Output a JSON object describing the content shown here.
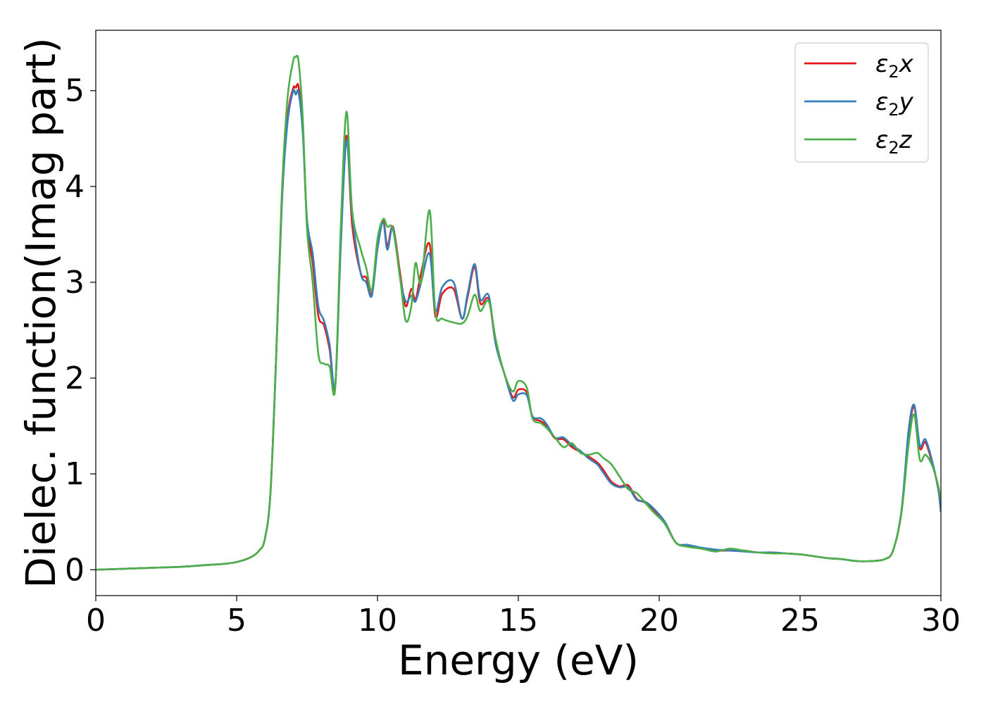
{
  "chart_data": {
    "type": "line",
    "title": "",
    "xlabel": "Energy (eV)",
    "ylabel": "Dielec. function(Imag part)",
    "xlim": [
      0,
      30
    ],
    "ylim": [
      -0.27,
      5.63
    ],
    "xticks": [
      0,
      5,
      10,
      15,
      20,
      25,
      30
    ],
    "yticks": [
      0,
      1,
      2,
      3,
      4,
      5
    ],
    "grid": false,
    "legend_position": "top-right",
    "series": [
      {
        "name": "ε2x",
        "legend_base": "ε",
        "legend_sub": "2",
        "legend_tail": "x",
        "color": "#e41a1c",
        "x": [
          0,
          1,
          2,
          3,
          4,
          4.5,
          5,
          5.5,
          5.8,
          6.0,
          6.2,
          6.4,
          6.6,
          6.8,
          7.0,
          7.1,
          7.2,
          7.35,
          7.5,
          7.7,
          7.9,
          8.1,
          8.3,
          8.5,
          8.7,
          8.9,
          9.1,
          9.4,
          9.6,
          9.8,
          10.0,
          10.2,
          10.35,
          10.55,
          10.8,
          11.0,
          11.2,
          11.35,
          11.55,
          11.85,
          12.05,
          12.3,
          12.7,
          13.0,
          13.2,
          13.45,
          13.65,
          13.95,
          14.2,
          14.5,
          14.8,
          15.0,
          15.3,
          15.5,
          15.8,
          16.0,
          16.3,
          16.6,
          16.9,
          17.2,
          17.5,
          17.8,
          18.0,
          18.3,
          18.6,
          18.9,
          19.2,
          19.5,
          19.8,
          20.2,
          20.6,
          21.0,
          21.5,
          22.0,
          22.5,
          23.0,
          23.5,
          24.0,
          24.5,
          25.0,
          25.5,
          26.0,
          26.5,
          27.0,
          27.5,
          28.0,
          28.3,
          28.6,
          28.85,
          29.05,
          29.25,
          29.45,
          29.7,
          29.9,
          30.0
        ],
        "y": [
          0,
          0.01,
          0.02,
          0.03,
          0.05,
          0.06,
          0.08,
          0.13,
          0.2,
          0.32,
          0.8,
          2.2,
          3.8,
          4.7,
          5.02,
          5.03,
          5.04,
          4.6,
          3.6,
          3.2,
          2.65,
          2.55,
          2.3,
          1.92,
          3.5,
          4.53,
          3.6,
          3.1,
          3.05,
          2.88,
          3.4,
          3.65,
          3.38,
          3.58,
          3.1,
          2.75,
          2.93,
          2.82,
          3.1,
          3.4,
          2.65,
          2.88,
          2.93,
          2.62,
          2.85,
          3.16,
          2.78,
          2.82,
          2.35,
          2.05,
          1.8,
          1.88,
          1.85,
          1.6,
          1.55,
          1.5,
          1.37,
          1.36,
          1.28,
          1.23,
          1.18,
          1.12,
          1.05,
          0.92,
          0.87,
          0.88,
          0.74,
          0.7,
          0.62,
          0.48,
          0.28,
          0.25,
          0.22,
          0.2,
          0.2,
          0.2,
          0.18,
          0.18,
          0.17,
          0.16,
          0.14,
          0.12,
          0.11,
          0.09,
          0.09,
          0.11,
          0.2,
          0.6,
          1.4,
          1.7,
          1.27,
          1.33,
          1.1,
          0.85,
          0.62
        ]
      },
      {
        "name": "ε2y",
        "legend_base": "ε",
        "legend_sub": "2",
        "legend_tail": "y",
        "color": "#377eb8",
        "x": [
          0,
          1,
          2,
          3,
          4,
          4.5,
          5,
          5.5,
          5.8,
          6.0,
          6.2,
          6.4,
          6.6,
          6.8,
          7.0,
          7.1,
          7.2,
          7.35,
          7.5,
          7.7,
          7.9,
          8.1,
          8.3,
          8.5,
          8.7,
          8.9,
          9.1,
          9.4,
          9.6,
          9.8,
          10.0,
          10.2,
          10.35,
          10.55,
          10.8,
          11.0,
          11.2,
          11.35,
          11.55,
          11.85,
          12.05,
          12.3,
          12.7,
          13.0,
          13.2,
          13.45,
          13.65,
          13.95,
          14.2,
          14.5,
          14.8,
          15.0,
          15.3,
          15.5,
          15.8,
          16.0,
          16.3,
          16.6,
          16.9,
          17.2,
          17.5,
          17.8,
          18.0,
          18.3,
          18.6,
          18.9,
          19.2,
          19.5,
          19.8,
          20.2,
          20.6,
          21.0,
          21.5,
          22.0,
          22.5,
          23.0,
          23.5,
          24.0,
          24.5,
          25.0,
          25.5,
          26.0,
          26.5,
          27.0,
          27.5,
          28.0,
          28.3,
          28.6,
          28.85,
          29.05,
          29.25,
          29.45,
          29.7,
          29.9,
          30.0
        ],
        "y": [
          0,
          0.01,
          0.02,
          0.03,
          0.05,
          0.06,
          0.08,
          0.13,
          0.2,
          0.32,
          0.8,
          2.2,
          3.8,
          4.65,
          4.99,
          4.96,
          4.98,
          4.55,
          3.65,
          3.3,
          2.75,
          2.6,
          2.35,
          1.93,
          3.4,
          4.48,
          3.7,
          3.1,
          3.0,
          2.86,
          3.35,
          3.62,
          3.34,
          3.57,
          3.05,
          2.8,
          2.86,
          2.8,
          3.0,
          3.3,
          2.7,
          2.95,
          3.0,
          2.62,
          2.88,
          3.19,
          2.82,
          2.86,
          2.35,
          2.05,
          1.77,
          1.83,
          1.82,
          1.6,
          1.58,
          1.52,
          1.38,
          1.38,
          1.3,
          1.24,
          1.16,
          1.1,
          1.02,
          0.9,
          0.86,
          0.86,
          0.73,
          0.71,
          0.64,
          0.5,
          0.28,
          0.26,
          0.23,
          0.21,
          0.2,
          0.19,
          0.18,
          0.18,
          0.17,
          0.16,
          0.14,
          0.12,
          0.11,
          0.09,
          0.09,
          0.11,
          0.2,
          0.62,
          1.45,
          1.72,
          1.3,
          1.36,
          1.12,
          0.85,
          0.6
        ]
      },
      {
        "name": "ε2z",
        "legend_base": "ε",
        "legend_sub": "2",
        "legend_tail": "z",
        "color": "#4daf4a",
        "x": [
          0,
          1,
          2,
          3,
          4,
          4.5,
          5,
          5.5,
          5.8,
          6.0,
          6.2,
          6.4,
          6.6,
          6.8,
          7.0,
          7.1,
          7.2,
          7.35,
          7.5,
          7.7,
          7.9,
          8.1,
          8.3,
          8.5,
          8.7,
          8.9,
          9.1,
          9.4,
          9.6,
          9.8,
          10.0,
          10.2,
          10.35,
          10.55,
          10.8,
          11.0,
          11.2,
          11.35,
          11.55,
          11.85,
          12.05,
          12.3,
          12.7,
          13.0,
          13.2,
          13.45,
          13.65,
          13.95,
          14.2,
          14.5,
          14.8,
          15.0,
          15.3,
          15.5,
          15.8,
          16.0,
          16.3,
          16.6,
          16.9,
          17.2,
          17.5,
          17.8,
          18.0,
          18.3,
          18.6,
          18.9,
          19.2,
          19.5,
          19.8,
          20.2,
          20.6,
          21.0,
          21.5,
          22.0,
          22.5,
          23.0,
          23.5,
          24.0,
          24.5,
          25.0,
          25.5,
          26.0,
          26.5,
          27.0,
          27.5,
          28.0,
          28.3,
          28.6,
          28.85,
          29.05,
          29.25,
          29.45,
          29.7,
          29.9,
          30.0
        ],
        "y": [
          0,
          0.01,
          0.02,
          0.03,
          0.05,
          0.06,
          0.08,
          0.13,
          0.2,
          0.32,
          0.8,
          2.2,
          3.9,
          4.9,
          5.3,
          5.35,
          5.3,
          4.7,
          3.55,
          3.0,
          2.25,
          2.15,
          2.12,
          1.9,
          3.6,
          4.78,
          3.75,
          3.35,
          3.15,
          2.92,
          3.45,
          3.66,
          3.58,
          3.55,
          3.05,
          2.6,
          2.75,
          3.2,
          3.0,
          3.75,
          2.7,
          2.62,
          2.58,
          2.57,
          2.65,
          2.87,
          2.7,
          2.8,
          2.4,
          2.05,
          1.86,
          1.97,
          1.9,
          1.58,
          1.53,
          1.48,
          1.38,
          1.28,
          1.32,
          1.22,
          1.2,
          1.22,
          1.17,
          1.1,
          0.97,
          0.84,
          0.8,
          0.7,
          0.6,
          0.48,
          0.28,
          0.24,
          0.22,
          0.19,
          0.22,
          0.2,
          0.18,
          0.17,
          0.17,
          0.16,
          0.14,
          0.12,
          0.11,
          0.09,
          0.09,
          0.11,
          0.2,
          0.6,
          1.3,
          1.62,
          1.15,
          1.2,
          1.08,
          0.88,
          0.72
        ]
      }
    ]
  }
}
